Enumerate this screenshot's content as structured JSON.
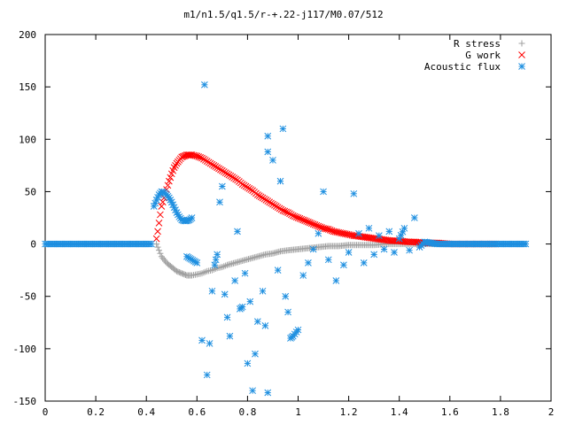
{
  "chart_data": {
    "type": "scatter",
    "title": "m1/n1.5/q1.5/r-+.22-j117/M0.07/512",
    "xlabel": "",
    "ylabel": "",
    "xlim": [
      0,
      2
    ],
    "ylim": [
      -150,
      200
    ],
    "xticks": [
      "0",
      "0.2",
      "0.4",
      "0.6",
      "0.8",
      "1",
      "1.2",
      "1.4",
      "1.6",
      "1.8",
      "2"
    ],
    "yticks": [
      "200",
      "150",
      "100",
      "50",
      "0",
      "-50",
      "-100",
      "-150"
    ],
    "grid": false,
    "legend_position": "top-right",
    "series": [
      {
        "name": "R stress",
        "marker": "plus",
        "color": "#a0a0a0",
        "points": [
          [
            0.44,
            0
          ],
          [
            0.445,
            -3
          ],
          [
            0.45,
            -6
          ],
          [
            0.455,
            -9
          ],
          [
            0.46,
            -12
          ],
          [
            0.47,
            -15
          ],
          [
            0.48,
            -18
          ],
          [
            0.49,
            -20
          ],
          [
            0.5,
            -22
          ],
          [
            0.51,
            -24
          ],
          [
            0.52,
            -26
          ],
          [
            0.53,
            -27
          ],
          [
            0.54,
            -28
          ],
          [
            0.55,
            -29
          ],
          [
            0.56,
            -30
          ],
          [
            0.57,
            -30
          ],
          [
            0.58,
            -30
          ],
          [
            0.6,
            -29
          ],
          [
            0.62,
            -28
          ],
          [
            0.64,
            -26
          ],
          [
            0.66,
            -25
          ],
          [
            0.68,
            -23
          ],
          [
            0.7,
            -22
          ],
          [
            0.72,
            -20
          ],
          [
            0.75,
            -18
          ],
          [
            0.78,
            -16
          ],
          [
            0.81,
            -14
          ],
          [
            0.84,
            -12
          ],
          [
            0.87,
            -10
          ],
          [
            0.9,
            -9
          ],
          [
            0.93,
            -7
          ],
          [
            0.96,
            -6
          ],
          [
            1.0,
            -5
          ],
          [
            1.04,
            -4
          ],
          [
            1.08,
            -3
          ],
          [
            1.12,
            -2
          ],
          [
            1.16,
            -2
          ],
          [
            1.2,
            -1
          ],
          [
            1.25,
            -1
          ],
          [
            1.3,
            -1
          ],
          [
            1.35,
            0
          ],
          [
            1.4,
            0
          ],
          [
            1.45,
            0
          ],
          [
            1.5,
            0
          ],
          [
            1.55,
            0
          ],
          [
            1.6,
            0
          ],
          [
            1.65,
            0
          ],
          [
            1.7,
            0
          ],
          [
            1.75,
            0
          ],
          [
            1.78,
            0
          ]
        ]
      },
      {
        "name": "G work",
        "marker": "cross",
        "color": "#ff0000",
        "points": [
          [
            0.44,
            5
          ],
          [
            0.445,
            12
          ],
          [
            0.45,
            20
          ],
          [
            0.455,
            28
          ],
          [
            0.46,
            36
          ],
          [
            0.47,
            44
          ],
          [
            0.48,
            52
          ],
          [
            0.49,
            60
          ],
          [
            0.5,
            67
          ],
          [
            0.51,
            73
          ],
          [
            0.52,
            77
          ],
          [
            0.53,
            80
          ],
          [
            0.54,
            83
          ],
          [
            0.55,
            84
          ],
          [
            0.56,
            85
          ],
          [
            0.57,
            85
          ],
          [
            0.58,
            85
          ],
          [
            0.6,
            84
          ],
          [
            0.62,
            82
          ],
          [
            0.64,
            79
          ],
          [
            0.66,
            76
          ],
          [
            0.68,
            73
          ],
          [
            0.7,
            70
          ],
          [
            0.72,
            67
          ],
          [
            0.74,
            64
          ],
          [
            0.76,
            61
          ],
          [
            0.78,
            57
          ],
          [
            0.8,
            54
          ],
          [
            0.82,
            51
          ],
          [
            0.84,
            47
          ],
          [
            0.86,
            44
          ],
          [
            0.88,
            41
          ],
          [
            0.9,
            38
          ],
          [
            0.92,
            35
          ],
          [
            0.94,
            32
          ],
          [
            0.96,
            30
          ],
          [
            0.98,
            27
          ],
          [
            1.0,
            25
          ],
          [
            1.02,
            23
          ],
          [
            1.04,
            21
          ],
          [
            1.06,
            19
          ],
          [
            1.08,
            17
          ],
          [
            1.1,
            15
          ],
          [
            1.12,
            14
          ],
          [
            1.14,
            12
          ],
          [
            1.16,
            11
          ],
          [
            1.18,
            10
          ],
          [
            1.2,
            9
          ],
          [
            1.22,
            8
          ],
          [
            1.25,
            7
          ],
          [
            1.28,
            6
          ],
          [
            1.31,
            5
          ],
          [
            1.34,
            4
          ],
          [
            1.37,
            3
          ],
          [
            1.4,
            3
          ],
          [
            1.43,
            2
          ],
          [
            1.46,
            2
          ],
          [
            1.5,
            1
          ],
          [
            1.55,
            1
          ],
          [
            1.6,
            0
          ],
          [
            1.65,
            0
          ],
          [
            1.7,
            0
          ],
          [
            1.75,
            0
          ],
          [
            1.78,
            0
          ]
        ]
      },
      {
        "name": "Acoustic flux",
        "marker": "star",
        "color": "#1e8fe0",
        "points": [
          [
            0.0,
            0
          ],
          [
            0.05,
            0
          ],
          [
            0.1,
            0
          ],
          [
            0.15,
            0
          ],
          [
            0.2,
            0
          ],
          [
            0.25,
            0
          ],
          [
            0.3,
            0
          ],
          [
            0.35,
            0
          ],
          [
            0.4,
            0
          ],
          [
            0.42,
            0
          ],
          [
            0.43,
            36
          ],
          [
            0.44,
            42
          ],
          [
            0.45,
            47
          ],
          [
            0.46,
            50
          ],
          [
            0.47,
            49
          ],
          [
            0.48,
            47
          ],
          [
            0.49,
            44
          ],
          [
            0.5,
            40
          ],
          [
            0.51,
            35
          ],
          [
            0.52,
            30
          ],
          [
            0.53,
            26
          ],
          [
            0.54,
            23
          ],
          [
            0.55,
            22
          ],
          [
            0.56,
            22
          ],
          [
            0.57,
            23
          ],
          [
            0.58,
            25
          ],
          [
            0.63,
            152
          ],
          [
            0.56,
            -12
          ],
          [
            0.6,
            -18
          ],
          [
            0.62,
            -92
          ],
          [
            0.64,
            -125
          ],
          [
            0.65,
            -95
          ],
          [
            0.66,
            -45
          ],
          [
            0.67,
            -20
          ],
          [
            0.68,
            -10
          ],
          [
            0.69,
            40
          ],
          [
            0.7,
            55
          ],
          [
            0.71,
            -48
          ],
          [
            0.72,
            -70
          ],
          [
            0.73,
            -88
          ],
          [
            0.75,
            -35
          ],
          [
            0.76,
            12
          ],
          [
            0.77,
            -62
          ],
          [
            0.78,
            -60
          ],
          [
            0.79,
            -28
          ],
          [
            0.8,
            -114
          ],
          [
            0.81,
            -55
          ],
          [
            0.82,
            -140
          ],
          [
            0.83,
            -105
          ],
          [
            0.84,
            -74
          ],
          [
            0.86,
            -45
          ],
          [
            0.87,
            -78
          ],
          [
            0.88,
            -142
          ],
          [
            0.88,
            88
          ],
          [
            0.88,
            103
          ],
          [
            0.9,
            80
          ],
          [
            0.92,
            -25
          ],
          [
            0.93,
            60
          ],
          [
            0.94,
            110
          ],
          [
            0.95,
            -50
          ],
          [
            0.96,
            -65
          ],
          [
            0.97,
            -90
          ],
          [
            0.98,
            -88
          ],
          [
            1.0,
            -82
          ],
          [
            1.02,
            -30
          ],
          [
            1.04,
            -18
          ],
          [
            1.06,
            -5
          ],
          [
            1.08,
            10
          ],
          [
            1.1,
            50
          ],
          [
            1.12,
            -15
          ],
          [
            1.15,
            -35
          ],
          [
            1.18,
            -20
          ],
          [
            1.2,
            -8
          ],
          [
            1.22,
            48
          ],
          [
            1.24,
            10
          ],
          [
            1.26,
            -18
          ],
          [
            1.28,
            15
          ],
          [
            1.3,
            -10
          ],
          [
            1.32,
            8
          ],
          [
            1.34,
            -5
          ],
          [
            1.36,
            12
          ],
          [
            1.38,
            -8
          ],
          [
            1.4,
            5
          ],
          [
            1.42,
            15
          ],
          [
            1.44,
            -6
          ],
          [
            1.46,
            25
          ],
          [
            1.48,
            -3
          ],
          [
            1.5,
            2
          ],
          [
            1.55,
            0
          ],
          [
            1.6,
            0
          ],
          [
            1.65,
            0
          ],
          [
            1.7,
            0
          ],
          [
            1.75,
            0
          ],
          [
            1.8,
            0
          ],
          [
            1.85,
            0
          ],
          [
            1.9,
            0
          ]
        ]
      }
    ]
  }
}
